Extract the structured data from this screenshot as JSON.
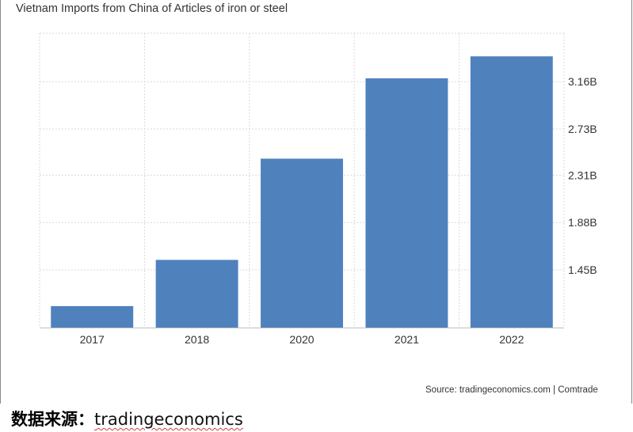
{
  "chart_data": {
    "type": "bar",
    "title": "Vietnam Imports from China of Articles of iron or steel",
    "categories": [
      "2017",
      "2018",
      "2020",
      "2021",
      "2022"
    ],
    "values": [
      1.12,
      1.54,
      2.46,
      3.19,
      3.39
    ],
    "y_axis_position": "right",
    "y_ticks": [
      1.45,
      1.88,
      2.31,
      2.73,
      3.16
    ],
    "y_tick_labels": [
      "1.45B",
      "1.88B",
      "2.31B",
      "2.73B",
      "3.16B"
    ],
    "ylim": [
      0.925,
      3.6
    ],
    "grid": true,
    "bar_color": "#4f81bd",
    "source": "Source: tradingeconomics.com | Comtrade"
  },
  "caption": {
    "label": "数据来源：",
    "link_text": "tradingeconomics"
  }
}
